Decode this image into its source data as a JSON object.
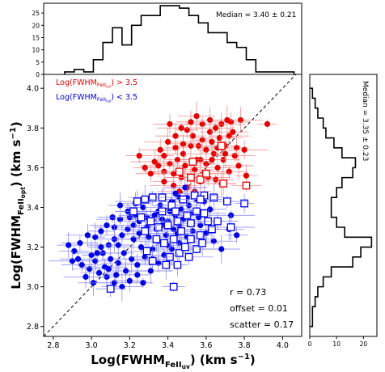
{
  "chart_data": [
    {
      "panel": "top-histogram",
      "type": "histogram",
      "annotation": "Median =  3.40 ± 0.21",
      "xlim": [
        2.75,
        4.1
      ],
      "ylim": [
        0,
        29
      ],
      "y_ticks": [
        0,
        5,
        10,
        15,
        20,
        25
      ],
      "bin_edges": [
        2.86,
        2.91,
        2.96,
        3.01,
        3.06,
        3.11,
        3.16,
        3.21,
        3.26,
        3.31,
        3.36,
        3.41,
        3.46,
        3.51,
        3.56,
        3.61,
        3.66,
        3.71,
        3.76,
        3.81,
        3.86,
        3.91,
        3.96,
        4.01,
        4.06
      ],
      "counts": [
        1,
        2,
        1,
        6,
        13,
        19,
        12,
        20,
        24,
        24,
        28,
        28,
        27,
        24,
        21,
        17,
        17,
        13,
        11,
        6,
        1,
        1,
        1,
        1
      ]
    },
    {
      "panel": "main-scatter",
      "type": "scatter",
      "xlabel_main": "Log(FWHM",
      "xlabel_sub": "FeII",
      "xlabel_subsub": "uv",
      "xlabel_unit": ") (km s",
      "xlabel_exp": "−1",
      "xlabel_close": ")",
      "ylabel_main": "Log(FWHM",
      "ylabel_sub": "FeII",
      "ylabel_subsub": "opt",
      "ylabel_unit": ") (km s",
      "ylabel_exp": "−1",
      "ylabel_close": ")",
      "xlim": [
        2.75,
        4.1
      ],
      "ylim": [
        2.75,
        4.07
      ],
      "x_ticks": [
        "2.8",
        "3.0",
        "3.2",
        "3.4",
        "3.6",
        "3.8",
        "4.0"
      ],
      "y_ticks": [
        "2.8",
        "3.0",
        "3.2",
        "3.4",
        "3.6",
        "3.8",
        "4.0"
      ],
      "one_to_one_line": true,
      "legend_position": "top-left",
      "legend": [
        {
          "prefix": "Log(FWHM",
          "sub": "FeII",
          "subsub": "uv",
          "suffix": ") > 3.5",
          "color": "#e60000"
        },
        {
          "prefix": "Log(FWHM",
          "sub": "FeII",
          "subsub": "uv",
          "suffix": ") < 3.5",
          "color": "#0000e6"
        }
      ],
      "stats": [
        "r =  0.73",
        "offset =  0.01",
        "scatter = 0.17"
      ],
      "series": [
        {
          "group": "red-filled",
          "color": "#e60000",
          "marker": "circle",
          "points": [
            [
              3.92,
              3.82
            ],
            [
              3.78,
              3.84
            ],
            [
              3.73,
              3.83
            ],
            [
              3.74,
              3.78
            ],
            [
              3.71,
              3.84
            ],
            [
              3.68,
              3.82
            ],
            [
              3.72,
              3.76
            ],
            [
              3.65,
              3.8
            ],
            [
              3.62,
              3.84
            ],
            [
              3.62,
              3.78
            ],
            [
              3.58,
              3.82
            ],
            [
              3.55,
              3.86
            ],
            [
              3.52,
              3.83
            ],
            [
              3.5,
              3.79
            ],
            [
              3.47,
              3.8
            ],
            [
              3.44,
              3.76
            ],
            [
              3.41,
              3.82
            ],
            [
              3.53,
              3.76
            ],
            [
              3.58,
              3.74
            ],
            [
              3.63,
              3.73
            ],
            [
              3.66,
              3.7
            ],
            [
              3.7,
              3.71
            ],
            [
              3.76,
              3.7
            ],
            [
              3.8,
              3.69
            ],
            [
              3.75,
              3.66
            ],
            [
              3.69,
              3.64
            ],
            [
              3.64,
              3.67
            ],
            [
              3.6,
              3.69
            ],
            [
              3.56,
              3.71
            ],
            [
              3.52,
              3.71
            ],
            [
              3.48,
              3.72
            ],
            [
              3.44,
              3.7
            ],
            [
              3.4,
              3.73
            ],
            [
              3.36,
              3.69
            ],
            [
              3.48,
              3.67
            ],
            [
              3.55,
              3.64
            ],
            [
              3.6,
              3.62
            ],
            [
              3.66,
              3.6
            ],
            [
              3.72,
              3.58
            ],
            [
              3.77,
              3.61
            ],
            [
              3.81,
              3.56
            ],
            [
              3.6,
              3.57
            ],
            [
              3.54,
              3.59
            ],
            [
              3.49,
              3.61
            ],
            [
              3.45,
              3.64
            ],
            [
              3.41,
              3.62
            ],
            [
              3.38,
              3.58
            ],
            [
              3.35,
              3.61
            ],
            [
              3.31,
              3.57
            ],
            [
              3.28,
              3.6
            ],
            [
              3.33,
              3.63
            ],
            [
              3.43,
              3.57
            ],
            [
              3.47,
              3.55
            ],
            [
              3.52,
              3.55
            ],
            [
              3.57,
              3.53
            ],
            [
              3.61,
              3.55
            ],
            [
              3.65,
              3.54
            ],
            [
              3.68,
              3.52
            ],
            [
              3.38,
              3.53
            ],
            [
              3.43,
              3.51
            ],
            [
              3.5,
              3.5
            ],
            [
              3.54,
              3.48
            ],
            [
              3.25,
              3.66
            ],
            [
              3.38,
              3.66
            ],
            [
              3.46,
              3.48
            ],
            [
              3.57,
              3.64
            ],
            [
              3.63,
              3.64
            ],
            [
              3.7,
              3.67
            ],
            [
              3.67,
              3.75
            ]
          ]
        },
        {
          "group": "red-open",
          "color": "#e60000",
          "marker": "square-open",
          "points": [
            [
              3.81,
              3.51
            ],
            [
              3.69,
              3.52
            ],
            [
              3.52,
              3.55
            ],
            [
              3.57,
              3.54
            ],
            [
              3.53,
              3.63
            ],
            [
              3.68,
              3.71
            ],
            [
              3.6,
              3.57
            ],
            [
              3.46,
              3.58
            ]
          ]
        },
        {
          "group": "blue-filled",
          "color": "#0000e6",
          "marker": "circle",
          "points": [
            [
              3.49,
              3.5
            ],
            [
              3.46,
              3.45
            ],
            [
              3.42,
              3.43
            ],
            [
              3.36,
              3.41
            ],
            [
              3.31,
              3.45
            ],
            [
              3.27,
              3.4
            ],
            [
              3.23,
              3.42
            ],
            [
              3.19,
              3.38
            ],
            [
              3.15,
              3.34
            ],
            [
              3.12,
              3.3
            ],
            [
              3.08,
              3.31
            ],
            [
              3.05,
              3.28
            ],
            [
              3.02,
              3.25
            ],
            [
              2.98,
              3.26
            ],
            [
              2.94,
              3.22
            ],
            [
              2.91,
              3.18
            ],
            [
              2.88,
              3.21
            ],
            [
              2.9,
              3.13
            ],
            [
              2.95,
              3.11
            ],
            [
              2.99,
              3.09
            ],
            [
              3.02,
              3.13
            ],
            [
              3.06,
              3.17
            ],
            [
              3.09,
              3.21
            ],
            [
              3.12,
              3.24
            ],
            [
              3.16,
              3.26
            ],
            [
              3.19,
              3.29
            ],
            [
              3.22,
              3.31
            ],
            [
              3.25,
              3.33
            ],
            [
              3.29,
              3.35
            ],
            [
              3.33,
              3.36
            ],
            [
              3.37,
              3.34
            ],
            [
              3.41,
              3.38
            ],
            [
              3.44,
              3.36
            ],
            [
              3.47,
              3.39
            ],
            [
              3.51,
              3.41
            ],
            [
              3.55,
              3.44
            ],
            [
              3.59,
              3.43
            ],
            [
              3.62,
              3.39
            ],
            [
              3.14,
              3.21
            ],
            [
              3.17,
              3.17
            ],
            [
              3.21,
              3.14
            ],
            [
              3.24,
              3.11
            ],
            [
              3.28,
              3.15
            ],
            [
              3.32,
              3.19
            ],
            [
              3.35,
              3.23
            ],
            [
              3.39,
              3.26
            ],
            [
              3.43,
              3.29
            ],
            [
              3.46,
              3.31
            ],
            [
              3.1,
              3.14
            ],
            [
              3.07,
              3.1
            ],
            [
              3.04,
              3.07
            ],
            [
              3.01,
              3.02
            ],
            [
              3.08,
              3.05
            ],
            [
              3.12,
              3.02
            ],
            [
              3.16,
              3.0
            ],
            [
              3.2,
              3.03
            ],
            [
              3.24,
              3.06
            ],
            [
              3.27,
              3.02
            ],
            [
              3.31,
              3.08
            ],
            [
              3.35,
              3.12
            ],
            [
              3.38,
              3.16
            ],
            [
              3.42,
              3.19
            ],
            [
              3.46,
              3.22
            ],
            [
              3.5,
              3.25
            ],
            [
              3.53,
              3.28
            ],
            [
              3.57,
              3.31
            ],
            [
              3.6,
              3.27
            ],
            [
              3.64,
              3.23
            ],
            [
              3.68,
              3.19
            ],
            [
              3.72,
              3.29
            ],
            [
              3.76,
              3.26
            ],
            [
              3.73,
              3.36
            ],
            [
              3.18,
              3.08
            ],
            [
              3.14,
              3.12
            ],
            [
              3.05,
              3.2
            ],
            [
              3.0,
              3.16
            ],
            [
              2.97,
              3.05
            ],
            [
              2.93,
              3.14
            ],
            [
              3.11,
              3.35
            ],
            [
              3.15,
              3.41
            ],
            [
              3.22,
              3.24
            ],
            [
              3.26,
              3.2
            ],
            [
              3.3,
              3.25
            ],
            [
              3.34,
              3.29
            ],
            [
              3.37,
              3.31
            ],
            [
              3.4,
              3.33
            ],
            [
              3.48,
              3.34
            ],
            [
              3.52,
              3.37
            ],
            [
              3.56,
              3.35
            ],
            [
              3.45,
              3.27
            ],
            [
              3.2,
              3.35
            ],
            [
              3.25,
              3.27
            ],
            [
              3.09,
              3.09
            ],
            [
              3.13,
              3.06
            ],
            [
              3.03,
              3.17
            ],
            [
              3.35,
              3.38
            ],
            [
              3.4,
              3.21
            ],
            [
              3.5,
              3.45
            ],
            [
              3.44,
              3.47
            ],
            [
              3.29,
              3.3
            ],
            [
              3.23,
              3.36
            ],
            [
              3.32,
              3.14
            ]
          ]
        },
        {
          "group": "blue-open",
          "color": "#0000e6",
          "marker": "square-open",
          "points": [
            [
              3.8,
              3.42
            ],
            [
              3.71,
              3.43
            ],
            [
              3.64,
              3.45
            ],
            [
              3.59,
              3.46
            ],
            [
              3.54,
              3.46
            ],
            [
              3.48,
              3.44
            ],
            [
              3.42,
              3.41
            ],
            [
              3.37,
              3.45
            ],
            [
              3.32,
              3.45
            ],
            [
              3.28,
              3.44
            ],
            [
              3.24,
              3.43
            ],
            [
              3.22,
              3.38
            ],
            [
              3.26,
              3.35
            ],
            [
              3.31,
              3.33
            ],
            [
              3.35,
              3.3
            ],
            [
              3.4,
              3.31
            ],
            [
              3.45,
              3.33
            ],
            [
              3.5,
              3.36
            ],
            [
              3.55,
              3.38
            ],
            [
              3.59,
              3.37
            ],
            [
              3.61,
              3.33
            ],
            [
              3.63,
              3.29
            ],
            [
              3.57,
              3.26
            ],
            [
              3.52,
              3.24
            ],
            [
              3.47,
              3.28
            ],
            [
              3.43,
              3.24
            ],
            [
              3.38,
              3.22
            ],
            [
              3.34,
              3.24
            ],
            [
              3.29,
              3.18
            ],
            [
              3.32,
              3.13
            ],
            [
              3.41,
              3.15
            ],
            [
              3.46,
              3.17
            ],
            [
              3.51,
              3.15
            ],
            [
              3.55,
              3.19
            ],
            [
              3.58,
              3.22
            ],
            [
              3.52,
              3.32
            ],
            [
              3.37,
              3.38
            ],
            [
              3.28,
              3.28
            ],
            [
              3.44,
              3.38
            ],
            [
              3.1,
              2.99
            ],
            [
              3.43,
              3.0
            ],
            [
              3.73,
              3.3
            ],
            [
              3.66,
              3.33
            ],
            [
              3.49,
              3.2
            ],
            [
              3.39,
              3.11
            ],
            [
              3.45,
              3.11
            ],
            [
              3.57,
              3.44
            ]
          ]
        }
      ]
    },
    {
      "panel": "right-histogram",
      "type": "histogram",
      "orientation": "horizontal",
      "annotation": "Median =  3.35 ± 0.23",
      "x_ticks": [
        0,
        10,
        20
      ],
      "xlim": [
        0,
        25
      ],
      "ylim": [
        2.75,
        4.07
      ],
      "bin_edges": [
        2.8,
        2.85,
        2.9,
        2.95,
        3.0,
        3.05,
        3.1,
        3.15,
        3.2,
        3.25,
        3.3,
        3.35,
        3.4,
        3.45,
        3.5,
        3.55,
        3.6,
        3.65,
        3.7,
        3.75,
        3.8,
        3.85,
        3.9,
        3.95,
        4.0
      ],
      "counts": [
        1,
        1,
        2,
        3,
        5,
        8,
        16,
        19,
        23,
        13,
        10,
        8,
        8,
        10,
        12,
        16,
        17,
        12,
        9,
        6,
        5,
        3,
        2,
        1
      ]
    }
  ]
}
